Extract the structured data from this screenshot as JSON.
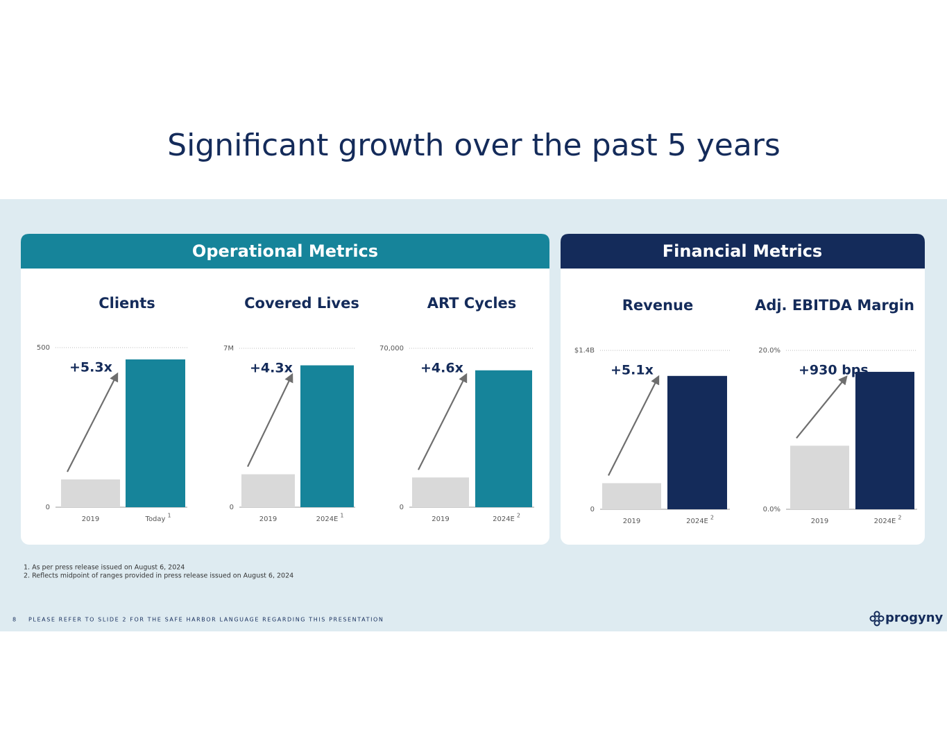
{
  "slide": {
    "title": "Significant growth over the past 5 years",
    "sections": [
      "Operational Metrics",
      "Financial Metrics"
    ],
    "footnotes": [
      "1.  As per press release issued on August 6, 2024",
      "2.  Reflects midpoint of ranges provided in press release issued on August 6, 2024"
    ],
    "page_number": "8",
    "disclaimer": "PLEASE REFER TO SLIDE 2 FOR THE SAFE HARBOR LANGUAGE REGARDING THIS PRESENTATION",
    "logo": "progyny"
  },
  "chart_data": [
    {
      "type": "bar",
      "title": "Clients",
      "categories": [
        "2019",
        "Today"
      ],
      "category_notes": [
        null,
        "1"
      ],
      "values": [
        87,
        463
      ],
      "colors": [
        "#d9d9d9",
        "#16849a"
      ],
      "ylim": [
        0,
        500
      ],
      "yticks": [
        0,
        500
      ],
      "annotation": "+5.3x"
    },
    {
      "type": "bar",
      "title": "Covered Lives",
      "categories": [
        "2019",
        "2024E"
      ],
      "category_notes": [
        null,
        "1"
      ],
      "values": [
        1450000,
        6250000
      ],
      "colors": [
        "#d9d9d9",
        "#16849a"
      ],
      "ylim": [
        0,
        7000000
      ],
      "yticks": [
        0,
        {
          "value": 7000000,
          "label": "7M"
        }
      ],
      "annotation": "+4.3x"
    },
    {
      "type": "bar",
      "title": "ART Cycles",
      "categories": [
        "2019",
        "2024E"
      ],
      "category_notes": [
        null,
        "2"
      ],
      "values": [
        13100,
        60300
      ],
      "colors": [
        "#d9d9d9",
        "#16849a"
      ],
      "ylim": [
        0,
        70000
      ],
      "yticks": [
        0,
        {
          "value": 70000,
          "label": "70,000"
        }
      ],
      "annotation": "+4.6x"
    },
    {
      "type": "bar",
      "title": "Revenue",
      "categories": [
        "2019",
        "2024E"
      ],
      "category_notes": [
        null,
        "2"
      ],
      "values": [
        230000000,
        1175000000
      ],
      "colors": [
        "#d9d9d9",
        "#142b5a"
      ],
      "ylim": [
        0,
        1400000000
      ],
      "yticks": [
        0,
        {
          "value": 1400000000,
          "label": "$1.4B"
        }
      ],
      "annotation": "+5.1x"
    },
    {
      "type": "bar",
      "title": "Adj. EBITDA Margin",
      "categories": [
        "2019",
        "2024E"
      ],
      "category_notes": [
        null,
        "2"
      ],
      "values": [
        8.0,
        17.3
      ],
      "colors": [
        "#d9d9d9",
        "#142b5a"
      ],
      "ylim": [
        0,
        20
      ],
      "yticks": [
        {
          "value": 0,
          "label": "0.0%"
        },
        {
          "value": 20,
          "label": "20.0%"
        }
      ],
      "annotation": "+930 bps"
    }
  ]
}
